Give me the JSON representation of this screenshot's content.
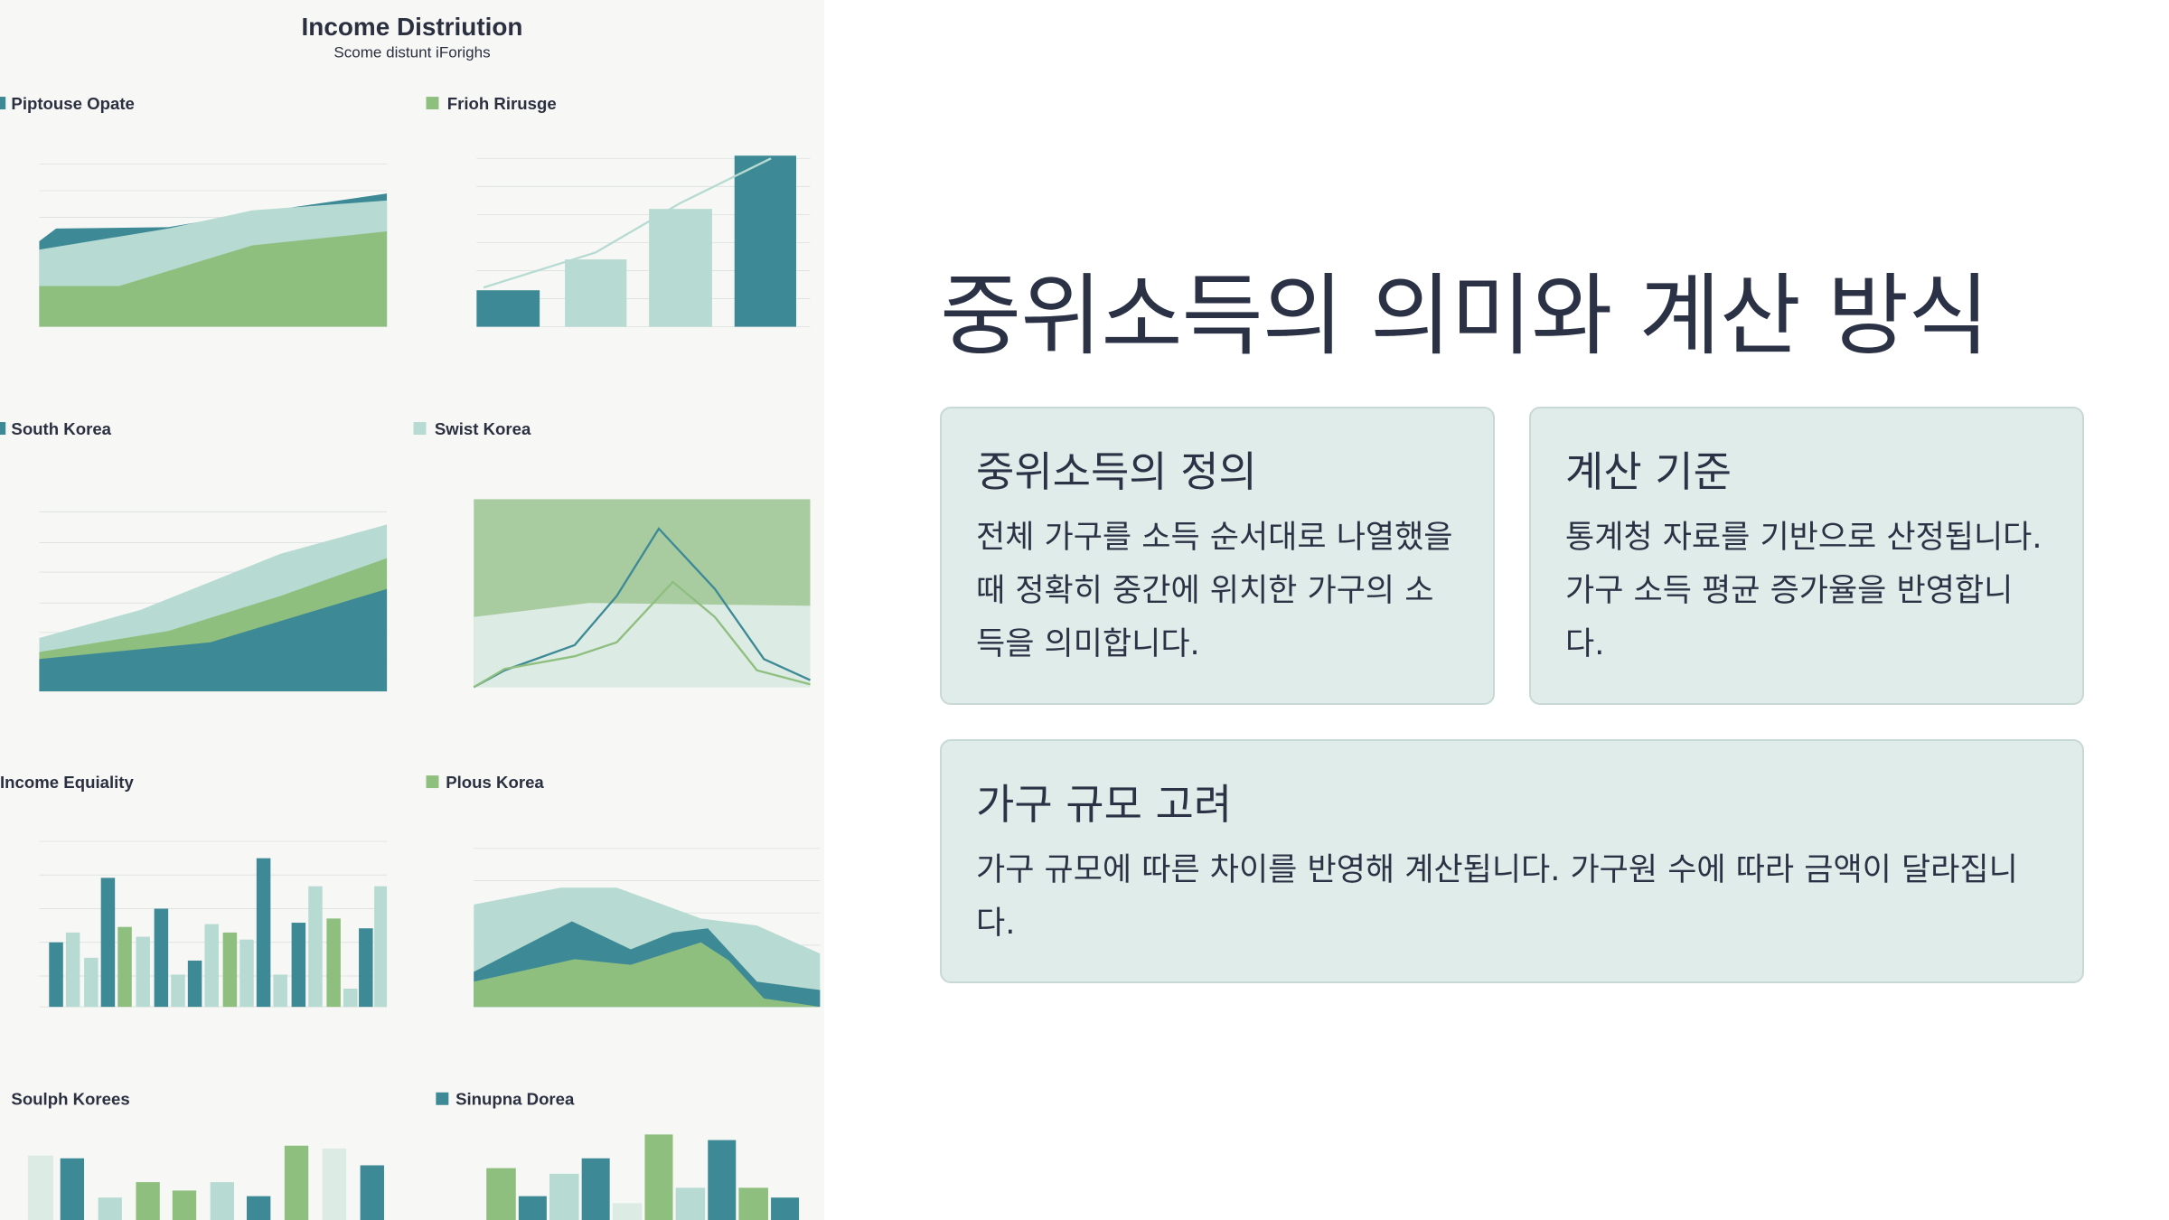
{
  "illustration": {
    "title": "Income Distriution",
    "subtitle": "Scome distunt iForighs",
    "panels": [
      {
        "title": "Piptouse Opate"
      },
      {
        "title": "Frioh Rirusge"
      },
      {
        "title": "South Korea"
      },
      {
        "title": "Swist Korea"
      },
      {
        "title": "Income Equiality"
      },
      {
        "title": "Plous Korea"
      },
      {
        "title": "Soulph Korees"
      },
      {
        "title": "Sinupna Dorea"
      }
    ]
  },
  "slide": {
    "heading": "중위소득의 의미와 계산 방식",
    "cards": [
      {
        "title": "중위소득의 정의",
        "body": "전체 가구를 소득 순서대로 나열했을 때 정확히 중간에 위치한 가구의 소득을 의미합니다."
      },
      {
        "title": "계산 기준",
        "body": "통계청 자료를 기반으로 산정됩니다. 가구 소득 평균 증가율을 반영합니다."
      },
      {
        "title": "가구 규모 고려",
        "body": "가구 규모에 따른 차이를 반영해 계산됩니다. 가구원 수에 따라 금액이 달라집니다."
      }
    ]
  }
}
